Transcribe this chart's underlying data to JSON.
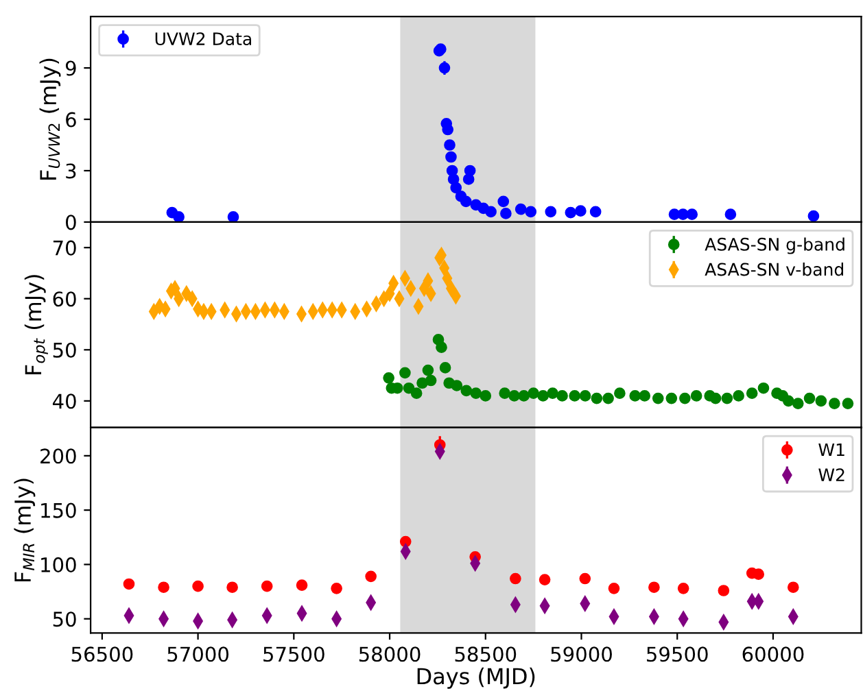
{
  "chart_data": [
    {
      "type": "scatter",
      "ylabel": "F$_{UVW2}$ (mJy)",
      "xlim": [
        56440,
        60460
      ],
      "ylim": [
        0,
        12
      ],
      "yticks": [
        0,
        3,
        6,
        9
      ],
      "tick_labels": "y",
      "legend": "top left",
      "grid": false,
      "bands": [
        {
          "axis": "x",
          "from": 58055,
          "to": 58760,
          "color": "#d9d9d9"
        }
      ],
      "series": [
        {
          "name": "UVW2 Data",
          "color": "#0000ff",
          "marker": "circle",
          "x": [
            56865,
            56900,
            57184,
            58258,
            58266,
            58286,
            58296,
            58303,
            58313,
            58320,
            58326,
            58333,
            58346,
            58372,
            58398,
            58412,
            58419,
            58450,
            58489,
            58528,
            58593,
            58606,
            58684,
            58736,
            58840,
            58944,
            58996,
            59074,
            59485,
            59530,
            59577,
            59778,
            60211
          ],
          "values": [
            0.55,
            0.3,
            0.3,
            10.0,
            10.1,
            9.0,
            5.75,
            5.4,
            4.5,
            3.8,
            3.0,
            2.5,
            2.0,
            1.5,
            1.2,
            2.5,
            3.0,
            1.0,
            0.8,
            0.6,
            1.2,
            0.5,
            0.75,
            0.6,
            0.6,
            0.55,
            0.65,
            0.6,
            0.45,
            0.45,
            0.45,
            0.45,
            0.35
          ],
          "errors": [
            null,
            null,
            null,
            null,
            null,
            0.4,
            null,
            null,
            null,
            null,
            null,
            null,
            null,
            null,
            null,
            null,
            null,
            null,
            null,
            null,
            null,
            null,
            null,
            null,
            null,
            null,
            null,
            null,
            null,
            null,
            null,
            null,
            null
          ]
        }
      ]
    },
    {
      "type": "scatter",
      "ylabel": "F$_{opt}$ (mJy)",
      "xlim": [
        56440,
        60460
      ],
      "ylim": [
        34.8,
        75
      ],
      "yticks": [
        40,
        50,
        60,
        70
      ],
      "tick_labels": "y",
      "legend": "top right",
      "grid": false,
      "bands": [
        {
          "axis": "x",
          "from": 58055,
          "to": 58760,
          "color": "#d9d9d9"
        }
      ],
      "series": [
        {
          "name": "ASAS-SN g-band",
          "color": "#008000",
          "marker": "circle",
          "x": [
            57995,
            58010,
            58040,
            58080,
            58100,
            58140,
            58170,
            58200,
            58215,
            58254,
            58270,
            58290,
            58310,
            58350,
            58400,
            58450,
            58500,
            58600,
            58650,
            58700,
            58750,
            58800,
            58850,
            58900,
            58965,
            59020,
            59080,
            59140,
            59200,
            59280,
            59330,
            59400,
            59470,
            59540,
            59600,
            59670,
            59700,
            59760,
            59820,
            59890,
            59950,
            60020,
            60050,
            60080,
            60130,
            60190,
            60250,
            60320,
            60390
          ],
          "values": [
            44.5,
            42.5,
            42.5,
            45.5,
            42.5,
            41.5,
            43.5,
            46,
            44,
            52,
            50.5,
            46.5,
            43.5,
            43,
            42,
            41.5,
            41,
            41.5,
            41,
            41,
            41.5,
            41,
            41.5,
            41,
            41,
            41,
            40.5,
            40.5,
            41.5,
            41,
            41,
            40.5,
            40.5,
            40.5,
            41,
            41,
            40.5,
            40.5,
            41,
            41.5,
            42.5,
            41.5,
            41,
            40,
            39.5,
            40.5,
            40,
            39.5,
            39.5
          ],
          "errors": [
            0.6,
            0.6,
            0.6,
            0.6,
            0.6,
            0.6,
            0.6,
            0.6,
            0.6,
            0.6,
            0.6,
            0.6,
            0.6,
            0.6,
            0.6,
            0.6,
            0.6,
            0.6,
            0.6,
            0.6,
            0.6,
            0.6,
            0.6,
            0.6,
            0.6,
            0.6,
            0.6,
            0.6,
            0.6,
            0.6,
            0.6,
            0.6,
            0.6,
            0.6,
            0.6,
            0.6,
            0.6,
            0.6,
            0.6,
            0.6,
            0.6,
            0.6,
            0.6,
            0.6,
            0.6,
            0.6,
            0.6,
            0.6,
            0.6
          ]
        },
        {
          "name": "ASAS-SN v-band",
          "color": "#ffa500",
          "marker": "diamond",
          "x": [
            56770,
            56800,
            56830,
            56860,
            56880,
            56900,
            56940,
            56970,
            57000,
            57030,
            57070,
            57140,
            57200,
            57250,
            57300,
            57350,
            57400,
            57450,
            57540,
            57600,
            57650,
            57700,
            57750,
            57820,
            57880,
            57930,
            57970,
            58000,
            58020,
            58050,
            58080,
            58110,
            58150,
            58180,
            58200,
            58215,
            58260,
            58270,
            58285,
            58300,
            58320,
            58345
          ],
          "values": [
            57.5,
            58.5,
            58,
            61.5,
            62,
            60,
            61,
            60,
            58,
            57.5,
            57.5,
            57.8,
            57,
            57.5,
            57.5,
            57.8,
            57.8,
            57.5,
            57,
            57.5,
            57.8,
            57.8,
            57.8,
            57.5,
            58,
            59,
            60,
            61,
            63,
            60,
            64,
            62,
            58.5,
            62,
            63.5,
            61,
            68,
            68.5,
            66,
            64,
            62,
            60.5
          ],
          "errors": [
            1.2,
            1.2,
            1.2,
            1.2,
            1.2,
            1.2,
            1.2,
            1.2,
            1.2,
            1.2,
            1.2,
            1.2,
            1.2,
            1.2,
            1.2,
            1.2,
            1.2,
            1.2,
            1.2,
            1.2,
            1.2,
            1.2,
            1.2,
            1.2,
            1.2,
            1.2,
            1.2,
            1.2,
            1.2,
            1.2,
            1.2,
            1.2,
            1.2,
            1.2,
            1.2,
            1.2,
            1.2,
            1.2,
            1.2,
            1.2,
            1.2,
            1.2
          ]
        }
      ]
    },
    {
      "type": "scatter",
      "xlabel": "Days (MJD)",
      "ylabel": "F$_{MIR}$ (mJy)",
      "xlim": [
        56440,
        60460
      ],
      "ylim": [
        37,
        226
      ],
      "yticks": [
        50,
        100,
        150,
        200
      ],
      "xticks": [
        56500,
        57000,
        57500,
        58000,
        58500,
        59000,
        59500,
        60000
      ],
      "legend": "top right",
      "grid": false,
      "bands": [
        {
          "axis": "x",
          "from": 58055,
          "to": 58760,
          "color": "#d9d9d9"
        }
      ],
      "x": [
        56640,
        56821,
        57000,
        57179,
        57360,
        57542,
        57723,
        57902,
        58083,
        58262,
        58446,
        58656,
        58809,
        59019,
        59170,
        59379,
        59532,
        59742,
        59890,
        59924,
        60105
      ],
      "series": [
        {
          "name": "W1",
          "color": "#ff0000",
          "marker": "circle",
          "values": [
            82,
            79,
            80,
            79,
            80,
            81,
            78,
            89,
            121,
            210,
            107,
            87,
            86,
            87,
            78,
            79,
            78,
            76,
            92,
            91,
            79
          ],
          "errors": [
            null,
            null,
            null,
            null,
            null,
            null,
            null,
            null,
            null,
            8,
            null,
            null,
            null,
            null,
            null,
            null,
            null,
            null,
            null,
            null,
            null
          ]
        },
        {
          "name": "W2",
          "color": "#800080",
          "marker": "diamond",
          "values": [
            53,
            50,
            48,
            49,
            53,
            55,
            50,
            65,
            112,
            204,
            101,
            63,
            62,
            64,
            52,
            52,
            50,
            47,
            66,
            66,
            52
          ],
          "errors": [
            null,
            null,
            null,
            null,
            null,
            null,
            null,
            null,
            null,
            4,
            null,
            null,
            null,
            null,
            null,
            null,
            null,
            null,
            null,
            null,
            null
          ]
        }
      ]
    }
  ]
}
